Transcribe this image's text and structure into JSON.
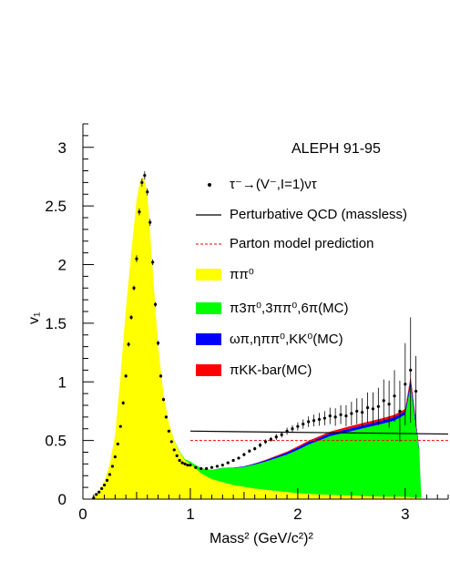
{
  "chart_data": {
    "type": "area",
    "header": "ALEPH 91-95",
    "xlabel": "Mass² (GeV/c²)²",
    "ylabel": "v₁",
    "xlim": [
      0,
      3.4
    ],
    "ylim": [
      0,
      3.2
    ],
    "x_ticks": [
      0,
      1,
      2,
      3
    ],
    "x_tick_labels": [
      "0",
      "1",
      "2",
      "3"
    ],
    "y_ticks": [
      0,
      0.5,
      1,
      1.5,
      2,
      2.5,
      3
    ],
    "y_tick_labels": [
      "0",
      "0.5",
      "1",
      "1.5",
      "2",
      "2.5",
      "3"
    ],
    "legend": [
      {
        "label": "τ⁻→(V⁻,I=1)ντ",
        "symbol": "point",
        "color": "#000000"
      },
      {
        "label": "Perturbative QCD (massless)",
        "symbol": "line",
        "color": "#000000"
      },
      {
        "label": "Parton model prediction",
        "symbol": "dashed",
        "color": "#ff0000"
      },
      {
        "label": "ππ⁰",
        "symbol": "box",
        "color": "#ffff00"
      },
      {
        "label": "π3π⁰,3ππ⁰,6π(MC)",
        "symbol": "box",
        "color": "#00ff00"
      },
      {
        "label": "ωπ,ηππ⁰,KK⁰(MC)",
        "symbol": "box",
        "color": "#0000ff"
      },
      {
        "label": "πKK-bar(MC)",
        "symbol": "box",
        "color": "#ff0000"
      }
    ],
    "series": [
      {
        "name": "ππ⁰",
        "kind": "stack",
        "color": "#ffff00",
        "x": [
          0.1,
          0.15,
          0.2,
          0.25,
          0.3,
          0.35,
          0.4,
          0.45,
          0.5,
          0.53,
          0.56,
          0.58,
          0.6,
          0.62,
          0.65,
          0.7,
          0.75,
          0.8,
          0.85,
          0.9,
          0.95,
          1.0,
          1.1,
          1.2,
          1.4,
          1.6,
          1.8,
          2.0,
          2.2,
          2.5,
          2.8,
          3.0,
          3.15
        ],
        "y": [
          0.02,
          0.07,
          0.15,
          0.3,
          0.55,
          1.05,
          1.62,
          2.1,
          2.55,
          2.7,
          2.75,
          2.7,
          2.6,
          2.35,
          1.95,
          1.3,
          0.9,
          0.65,
          0.5,
          0.4,
          0.33,
          0.3,
          0.22,
          0.17,
          0.12,
          0.09,
          0.07,
          0.05,
          0.04,
          0.03,
          0.02,
          0.02,
          0.01
        ]
      },
      {
        "name": "π3π⁰,3ππ⁰,6π(MC)",
        "kind": "stack",
        "color": "#00ff00",
        "x": [
          0.1,
          0.8,
          0.95,
          1.05,
          1.15,
          1.3,
          1.5,
          1.7,
          1.9,
          2.1,
          2.3,
          2.5,
          2.7,
          2.9,
          3.0,
          3.05,
          3.1,
          3.13,
          3.15
        ],
        "y": [
          0,
          0,
          0.01,
          0.03,
          0.06,
          0.12,
          0.17,
          0.24,
          0.32,
          0.42,
          0.5,
          0.55,
          0.6,
          0.65,
          0.7,
          0.95,
          0.6,
          0.4,
          0.0
        ]
      },
      {
        "name": "ωπ,ηππ⁰,KK⁰(MC)",
        "kind": "stack",
        "color": "#0000ff",
        "x": [
          0.1,
          1.2,
          1.5,
          2.0,
          2.5,
          3.0,
          3.05,
          3.1,
          3.15
        ],
        "y": [
          0,
          0,
          0.005,
          0.02,
          0.025,
          0.03,
          0.05,
          0.04,
          0
        ]
      },
      {
        "name": "πKK-bar(MC)",
        "kind": "stack",
        "color": "#ff0000",
        "x": [
          0.1,
          1.5,
          2.0,
          2.5,
          3.0,
          3.05,
          3.1,
          3.15
        ],
        "y": [
          0,
          0,
          0.01,
          0.02,
          0.02,
          0.03,
          0.02,
          0
        ]
      },
      {
        "name": "τ⁻→(V⁻,I=1)ντ",
        "kind": "points",
        "color": "#000000",
        "x": [
          0.1,
          0.125,
          0.15,
          0.175,
          0.2,
          0.225,
          0.25,
          0.275,
          0.3,
          0.325,
          0.35,
          0.375,
          0.4,
          0.425,
          0.45,
          0.475,
          0.5,
          0.525,
          0.55,
          0.575,
          0.6,
          0.625,
          0.65,
          0.675,
          0.7,
          0.725,
          0.75,
          0.775,
          0.8,
          0.825,
          0.85,
          0.875,
          0.9,
          0.925,
          0.95,
          0.975,
          1.0,
          1.05,
          1.1,
          1.15,
          1.2,
          1.25,
          1.3,
          1.35,
          1.4,
          1.45,
          1.5,
          1.55,
          1.6,
          1.65,
          1.7,
          1.75,
          1.8,
          1.85,
          1.9,
          1.95,
          2.0,
          2.05,
          2.1,
          2.15,
          2.2,
          2.25,
          2.3,
          2.35,
          2.4,
          2.45,
          2.5,
          2.55,
          2.6,
          2.65,
          2.7,
          2.75,
          2.8,
          2.85,
          2.9,
          2.95,
          3.0,
          3.05,
          3.1
        ],
        "y": [
          0.01,
          0.04,
          0.06,
          0.09,
          0.12,
          0.16,
          0.21,
          0.28,
          0.36,
          0.47,
          0.62,
          0.82,
          1.05,
          1.32,
          1.55,
          1.8,
          2.05,
          2.45,
          2.7,
          2.76,
          2.62,
          2.36,
          2.02,
          1.66,
          1.33,
          1.05,
          0.85,
          0.7,
          0.58,
          0.49,
          0.42,
          0.37,
          0.33,
          0.31,
          0.3,
          0.29,
          0.29,
          0.27,
          0.26,
          0.26,
          0.27,
          0.28,
          0.29,
          0.31,
          0.33,
          0.35,
          0.38,
          0.41,
          0.43,
          0.46,
          0.49,
          0.51,
          0.53,
          0.55,
          0.58,
          0.6,
          0.62,
          0.64,
          0.66,
          0.67,
          0.68,
          0.69,
          0.71,
          0.7,
          0.72,
          0.71,
          0.73,
          0.75,
          0.74,
          0.78,
          0.77,
          0.79,
          0.84,
          0.81,
          0.88,
          0.75,
          0.98,
          1.1,
          0.92
        ],
        "yerr": [
          0.005,
          0.005,
          0.005,
          0.005,
          0.01,
          0.01,
          0.01,
          0.01,
          0.01,
          0.01,
          0.01,
          0.015,
          0.015,
          0.02,
          0.02,
          0.02,
          0.03,
          0.03,
          0.035,
          0.035,
          0.03,
          0.03,
          0.025,
          0.02,
          0.02,
          0.015,
          0.015,
          0.01,
          0.01,
          0.01,
          0.01,
          0.01,
          0.01,
          0.01,
          0.01,
          0.01,
          0.01,
          0.01,
          0.01,
          0.01,
          0.01,
          0.01,
          0.01,
          0.01,
          0.01,
          0.01,
          0.015,
          0.015,
          0.015,
          0.02,
          0.02,
          0.02,
          0.025,
          0.025,
          0.03,
          0.03,
          0.035,
          0.04,
          0.045,
          0.05,
          0.055,
          0.06,
          0.07,
          0.075,
          0.08,
          0.09,
          0.1,
          0.11,
          0.12,
          0.13,
          0.14,
          0.16,
          0.18,
          0.2,
          0.22,
          0.26,
          0.35,
          0.45,
          0.3
        ]
      },
      {
        "name": "Perturbative QCD (massless)",
        "kind": "line",
        "color": "#000000",
        "x": [
          1.0,
          3.4
        ],
        "y": [
          0.58,
          0.555
        ]
      },
      {
        "name": "Parton model prediction",
        "kind": "dashed",
        "color": "#ff0000",
        "x": [
          1.0,
          3.4
        ],
        "y": [
          0.5,
          0.5
        ]
      }
    ]
  }
}
